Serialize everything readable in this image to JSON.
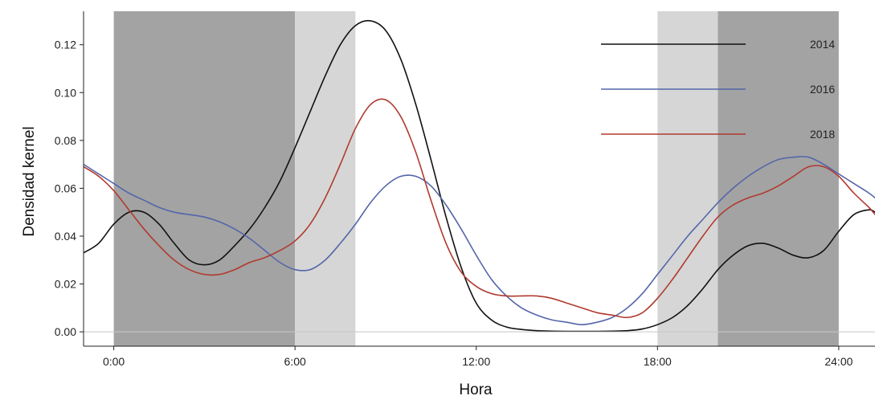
{
  "chart_data": {
    "type": "line",
    "title": "",
    "xlabel": "Hora",
    "ylabel": "Densidad kernel",
    "xlim": [
      -1,
      25.2
    ],
    "ylim": [
      -0.006,
      0.134
    ],
    "x_ticks": [
      0,
      6,
      12,
      18,
      24
    ],
    "x_tick_labels": [
      "0:00",
      "6:00",
      "12:00",
      "18:00",
      "24:00"
    ],
    "y_ticks": [
      0,
      0.02,
      0.04,
      0.06,
      0.08,
      0.1,
      0.12
    ],
    "y_tick_labels": [
      "0.00",
      "0.02",
      "0.04",
      "0.06",
      "0.08",
      "0.10",
      "0.12"
    ],
    "grid": false,
    "legend_position": "top-right",
    "shaded_bands": [
      {
        "from": 0,
        "to": 6,
        "shade": "dark",
        "color": "#a3a3a3"
      },
      {
        "from": 6,
        "to": 8,
        "shade": "light",
        "color": "#d6d6d6"
      },
      {
        "from": 18,
        "to": 20,
        "shade": "light",
        "color": "#d6d6d6"
      },
      {
        "from": 20,
        "to": 24,
        "shade": "dark",
        "color": "#a3a3a3"
      }
    ],
    "series": [
      {
        "name": "2014",
        "color": "#111111",
        "x": [
          -1,
          -0.5,
          0,
          0.5,
          1,
          1.5,
          2,
          2.5,
          3,
          3.5,
          4,
          4.5,
          5,
          5.5,
          6,
          6.5,
          7,
          7.5,
          8,
          8.5,
          9,
          9.5,
          10,
          10.5,
          11,
          11.5,
          12,
          12.5,
          13,
          13.5,
          14,
          14.5,
          15,
          15.5,
          16,
          16.5,
          17,
          17.5,
          18,
          18.5,
          19,
          19.5,
          20,
          20.5,
          21,
          21.5,
          22,
          22.5,
          23,
          23.5,
          24,
          24.5,
          25,
          25.2
        ],
        "y": [
          0.033,
          0.037,
          0.045,
          0.05,
          0.05,
          0.045,
          0.037,
          0.03,
          0.028,
          0.03,
          0.036,
          0.043,
          0.052,
          0.063,
          0.077,
          0.092,
          0.107,
          0.12,
          0.128,
          0.13,
          0.126,
          0.114,
          0.095,
          0.072,
          0.048,
          0.027,
          0.012,
          0.005,
          0.002,
          0.001,
          0.0005,
          0.0003,
          0.0002,
          0.0002,
          0.0002,
          0.0003,
          0.0005,
          0.0012,
          0.003,
          0.006,
          0.011,
          0.018,
          0.026,
          0.032,
          0.036,
          0.037,
          0.035,
          0.032,
          0.031,
          0.034,
          0.042,
          0.049,
          0.051,
          0.05
        ]
      },
      {
        "name": "2016",
        "color": "#5566aa",
        "x": [
          -1,
          -0.5,
          0,
          0.5,
          1,
          1.5,
          2,
          2.5,
          3,
          3.5,
          4,
          4.5,
          5,
          5.5,
          6,
          6.5,
          7,
          7.5,
          8,
          8.5,
          9,
          9.5,
          10,
          10.5,
          11,
          11.5,
          12,
          12.5,
          13,
          13.5,
          14,
          14.5,
          15,
          15.5,
          16,
          16.5,
          17,
          17.5,
          18,
          18.5,
          19,
          19.5,
          20,
          20.5,
          21,
          21.5,
          22,
          22.5,
          23,
          23.5,
          24,
          24.5,
          25,
          25.2
        ],
        "y": [
          0.07,
          0.066,
          0.062,
          0.058,
          0.055,
          0.052,
          0.05,
          0.049,
          0.048,
          0.046,
          0.043,
          0.039,
          0.034,
          0.029,
          0.026,
          0.026,
          0.03,
          0.037,
          0.045,
          0.054,
          0.061,
          0.065,
          0.065,
          0.061,
          0.053,
          0.043,
          0.032,
          0.022,
          0.015,
          0.01,
          0.007,
          0.005,
          0.004,
          0.003,
          0.004,
          0.006,
          0.01,
          0.016,
          0.024,
          0.032,
          0.04,
          0.047,
          0.054,
          0.06,
          0.065,
          0.069,
          0.072,
          0.073,
          0.073,
          0.07,
          0.066,
          0.062,
          0.058,
          0.056
        ]
      },
      {
        "name": "2018",
        "color": "#b03a2e",
        "x": [
          -1,
          -0.5,
          0,
          0.5,
          1,
          1.5,
          2,
          2.5,
          3,
          3.5,
          4,
          4.5,
          5,
          5.5,
          6,
          6.5,
          7,
          7.5,
          8,
          8.5,
          9,
          9.5,
          10,
          10.5,
          11,
          11.5,
          12,
          12.5,
          13,
          13.5,
          14,
          14.5,
          15,
          15.5,
          16,
          16.5,
          17,
          17.5,
          18,
          18.5,
          19,
          19.5,
          20,
          20.5,
          21,
          21.5,
          22,
          22.5,
          23,
          23.5,
          24,
          24.5,
          25,
          25.2
        ],
        "y": [
          0.069,
          0.065,
          0.059,
          0.051,
          0.043,
          0.036,
          0.03,
          0.026,
          0.024,
          0.024,
          0.026,
          0.029,
          0.031,
          0.034,
          0.038,
          0.045,
          0.056,
          0.07,
          0.085,
          0.095,
          0.097,
          0.09,
          0.075,
          0.055,
          0.037,
          0.025,
          0.019,
          0.016,
          0.015,
          0.015,
          0.015,
          0.014,
          0.012,
          0.01,
          0.008,
          0.007,
          0.006,
          0.008,
          0.014,
          0.022,
          0.031,
          0.04,
          0.048,
          0.053,
          0.056,
          0.058,
          0.061,
          0.065,
          0.069,
          0.069,
          0.065,
          0.058,
          0.052,
          0.049
        ]
      }
    ]
  }
}
